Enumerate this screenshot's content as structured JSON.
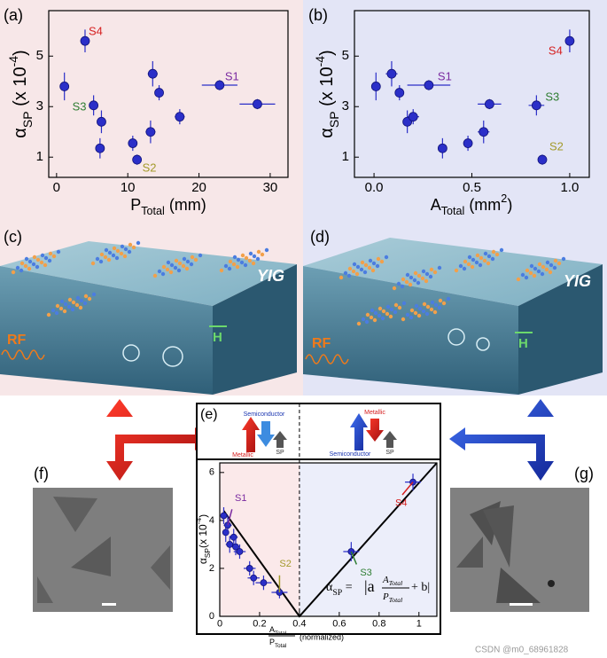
{
  "panels": {
    "a": "(a)",
    "b": "(b)",
    "c": "(c)",
    "d": "(d)",
    "e": "(e)",
    "f": "(f)",
    "g": "(g)"
  },
  "illustrations": {
    "c": {
      "material": "YIG",
      "source": "RF",
      "field": "H"
    },
    "d": {
      "material": "YIG",
      "source": "RF",
      "field": "H"
    }
  },
  "banner": {
    "left": {
      "up": "Metallic",
      "down": "Semiconductor",
      "out": "SP"
    },
    "right": {
      "up": "Semiconductor",
      "down": "Metallic",
      "out": "SP"
    }
  },
  "formula": {
    "lhs": [
      {
        "t": "α"
      },
      {
        "t": "SP",
        "s": "sub"
      },
      {
        "t": " = "
      }
    ],
    "pre": "|a",
    "num": [
      {
        "t": "A"
      },
      {
        "t": "Total",
        "s": "sub"
      }
    ],
    "den": [
      {
        "t": "P"
      },
      {
        "t": "Total",
        "s": "sub"
      }
    ],
    "post": "+ b|"
  },
  "watermark": "CSDN @m0_68961828",
  "chart_data": [
    {
      "type": "scatter",
      "color": "#2b2fc8",
      "xlabel": [
        {
          "t": "P"
        },
        {
          "t": "Total",
          "s": "sub"
        },
        {
          "t": " (mm)"
        }
      ],
      "ylabel": [
        {
          "t": "α"
        },
        {
          "t": "SP",
          "s": "sub"
        },
        {
          "t": " (x 10"
        },
        {
          "t": "-4",
          "s": "super"
        },
        {
          "t": ")"
        }
      ],
      "x": [
        1.1,
        4,
        5.2,
        6.3,
        6.1,
        10.7,
        11.3,
        13.2,
        13.5,
        14.4,
        17.3,
        22.9,
        28.2
      ],
      "y": [
        3.8,
        5.6,
        3.05,
        2.4,
        1.35,
        1.55,
        0.9,
        2.0,
        4.3,
        3.55,
        2.6,
        3.85,
        3.1
      ],
      "yerr": [
        0.55,
        0.45,
        0.4,
        0.45,
        0.4,
        0.3,
        0.2,
        0.45,
        0.5,
        0.3,
        0.3,
        0.2,
        0.2
      ],
      "xerr": [
        0,
        0,
        0,
        0,
        0,
        0.5,
        0.5,
        0.7,
        0.7,
        0.6,
        0.7,
        2.5,
        2.5
      ],
      "point_labels": [
        null,
        "S4",
        "S3",
        null,
        null,
        null,
        "S2",
        null,
        null,
        null,
        null,
        "S1",
        null
      ],
      "label_colors": {
        "S1": "#7a2aa0",
        "S2": "#a39a2a",
        "S3": "#2e7d32",
        "S4": "#d62020"
      },
      "xlim": [
        -1.1,
        32.5
      ],
      "ylim": [
        0.2,
        6.8
      ],
      "xticks": [
        0,
        10,
        20,
        30
      ],
      "yticks": [
        1,
        3,
        5
      ]
    },
    {
      "type": "scatter",
      "color": "#2b2fc8",
      "xlabel": [
        {
          "t": "A"
        },
        {
          "t": "Total",
          "s": "sub"
        },
        {
          "t": " (mm"
        },
        {
          "t": "2",
          "s": "super"
        },
        {
          "t": ")"
        }
      ],
      "ylabel": [
        {
          "t": "α"
        },
        {
          "t": "SP",
          "s": "sub"
        },
        {
          "t": " (x 10"
        },
        {
          "t": "-4",
          "s": "super"
        },
        {
          "t": ")"
        }
      ],
      "x": [
        0.01,
        0.09,
        0.13,
        0.17,
        0.2,
        0.28,
        0.35,
        0.48,
        0.56,
        0.59,
        0.83,
        0.86,
        1.0
      ],
      "y": [
        3.8,
        4.3,
        3.55,
        2.4,
        2.6,
        3.85,
        1.35,
        1.55,
        2.0,
        3.1,
        3.05,
        0.9,
        5.6
      ],
      "yerr": [
        0.55,
        0.5,
        0.3,
        0.45,
        0.3,
        0.2,
        0.4,
        0.3,
        0.45,
        0.2,
        0.4,
        0.2,
        0.45
      ],
      "xerr": [
        0,
        0.03,
        0.02,
        0.02,
        0.03,
        0.11,
        0,
        0.02,
        0.03,
        0.06,
        0.04,
        0.01,
        0.01
      ],
      "point_labels": [
        null,
        null,
        null,
        null,
        null,
        "S1",
        null,
        null,
        null,
        null,
        "S3",
        "S2",
        "S4"
      ],
      "label_colors": {
        "S1": "#7a2aa0",
        "S2": "#a39a2a",
        "S3": "#2e7d32",
        "S4": "#d62020"
      },
      "xlim": [
        -0.1,
        1.1
      ],
      "ylim": [
        0.2,
        6.8
      ],
      "xticks": [
        {
          "value": 0,
          "label": "0.0"
        },
        0.5,
        {
          "value": 1,
          "label": "1.0"
        }
      ],
      "yticks": [
        1,
        3,
        5
      ]
    },
    {
      "type": "scatter",
      "color": "#2b2fc8",
      "xlabel": {
        "num": [
          {
            "t": "A"
          },
          {
            "t": "Total",
            "s": "sub"
          }
        ],
        "den": [
          {
            "t": "P"
          },
          {
            "t": "Total",
            "s": "sub"
          }
        ],
        "rest": "(normalized)"
      },
      "ylabel": [
        {
          "t": "α"
        },
        {
          "t": "SP",
          "s": "sub"
        },
        {
          "t": "(x 10"
        },
        {
          "t": "-4",
          "s": "super"
        },
        {
          "t": ")"
        }
      ],
      "x": [
        0.02,
        0.03,
        0.04,
        0.05,
        0.07,
        0.08,
        0.1,
        0.15,
        0.17,
        0.22,
        0.3,
        0.66,
        0.97
      ],
      "y": [
        4.2,
        3.5,
        3.8,
        3.0,
        3.3,
        2.9,
        2.7,
        2.0,
        1.6,
        1.4,
        1.0,
        2.7,
        5.6
      ],
      "yerr": [
        0.35,
        0.4,
        0.4,
        0.35,
        0.35,
        0.35,
        0.3,
        0.3,
        0.3,
        0.3,
        0.25,
        0.4,
        0.35
      ],
      "xerr": [
        0.01,
        0.01,
        0.02,
        0.02,
        0.02,
        0.02,
        0.03,
        0.03,
        0.03,
        0.04,
        0.04,
        0.04,
        0.04
      ],
      "point_labels": [
        null,
        null,
        "S1",
        null,
        null,
        null,
        null,
        null,
        null,
        null,
        "S2",
        "S3",
        "S4"
      ],
      "label_colors": {
        "S1": "#7a2aa0",
        "S2": "#a39a2a",
        "S3": "#2e7d32",
        "S4": "#d62020"
      },
      "fit": {
        "x": [
          0.02,
          0.4,
          1.09
        ],
        "y": [
          4.4,
          0,
          6.4
        ]
      },
      "xlim": [
        0,
        1.09
      ],
      "ylim": [
        0,
        6.4
      ],
      "xticks": [
        0,
        0.2,
        0.4,
        0.6,
        0.8,
        1
      ],
      "yticks": [
        0,
        2,
        4,
        6
      ]
    }
  ]
}
